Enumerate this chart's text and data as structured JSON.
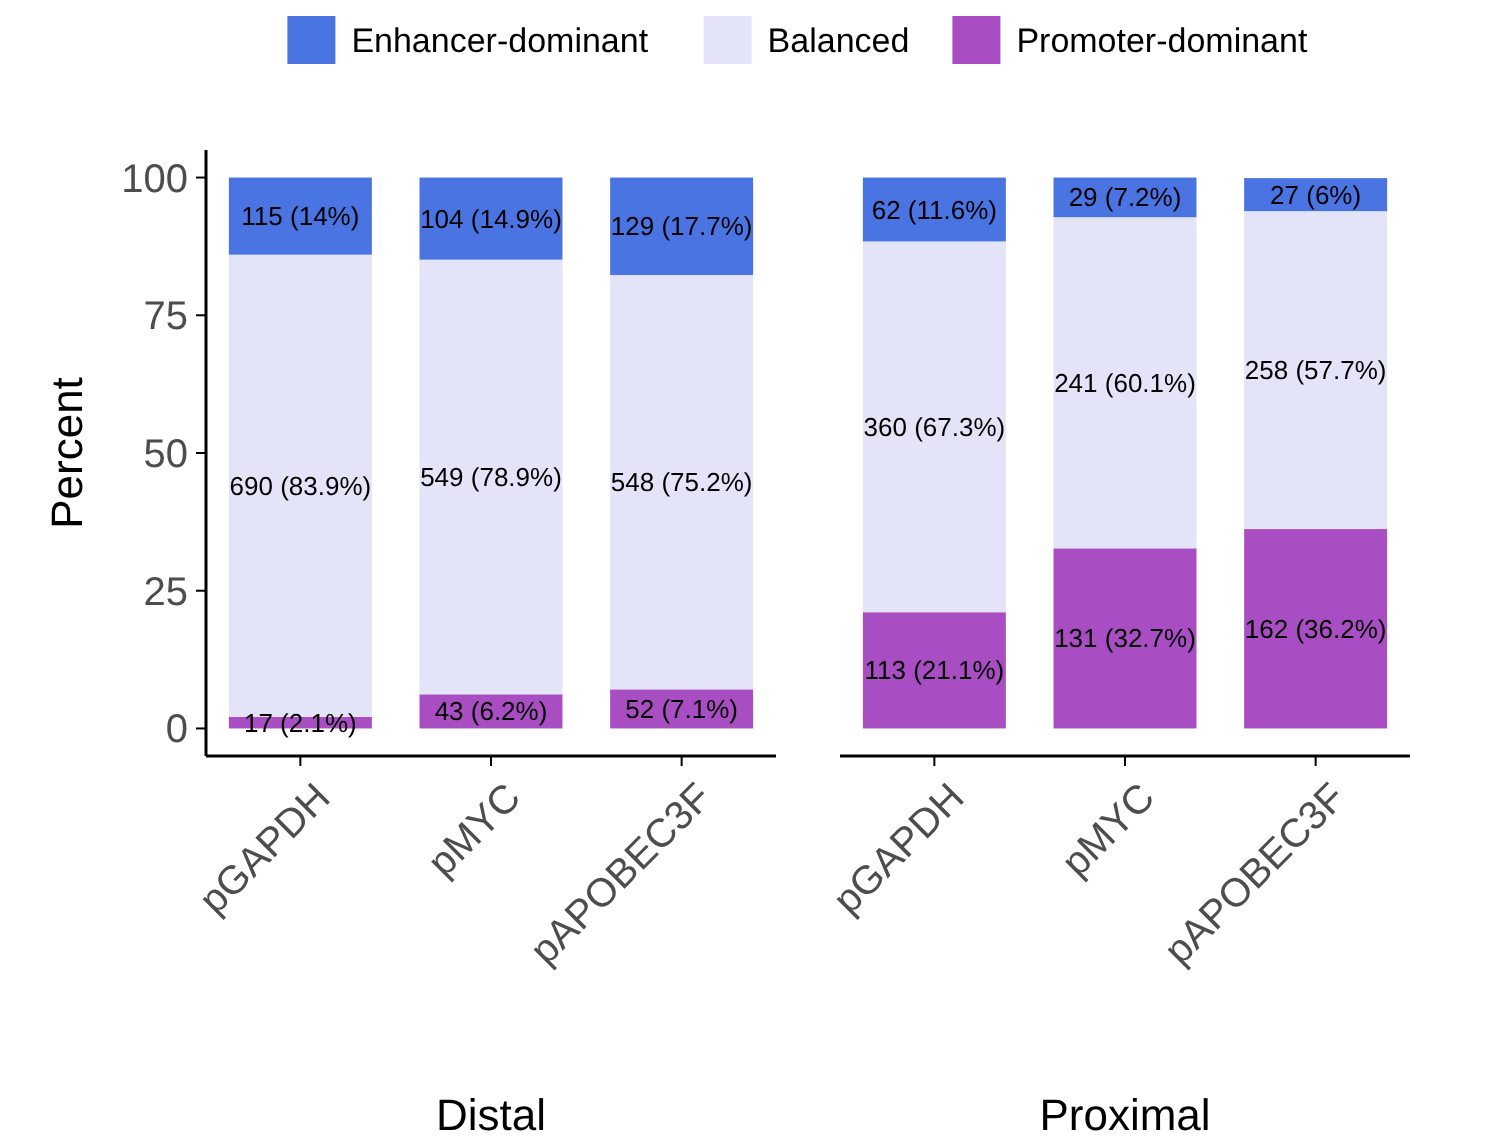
{
  "chart_data": [
    {
      "type": "bar",
      "stacked": true,
      "xlabel": "Distal",
      "ylabel": "Percent",
      "categories": [
        "pGAPDH",
        "pMYC",
        "pAPOBEC3F"
      ],
      "ylim": [
        -5,
        105
      ],
      "yticks": [
        0,
        25,
        50,
        75,
        100
      ],
      "grid": false,
      "legend": "top",
      "series": [
        {
          "name": "Promoter-dominant",
          "color": "#a94ec2",
          "values": [
            2.1,
            6.2,
            7.1
          ],
          "value_labels": [
            "17 (2.1%)",
            "43 (6.2%)",
            "52 (7.1%)"
          ]
        },
        {
          "name": "Balanced",
          "color": "#e4e4f8",
          "values": [
            83.9,
            78.9,
            75.2
          ],
          "value_labels": [
            "690 (83.9%)",
            "549 (78.9%)",
            "548 (75.2%)"
          ]
        },
        {
          "name": "Enhancer-dominant",
          "color": "#4a74e2",
          "values": [
            14,
            14.9,
            17.7
          ],
          "value_labels": [
            "115 (14%)",
            "104 (14.9%)",
            "129 (17.7%)"
          ]
        }
      ]
    },
    {
      "type": "bar",
      "stacked": true,
      "xlabel": "Proximal",
      "categories": [
        "pGAPDH",
        "pMYC",
        "pAPOBEC3F"
      ],
      "tick_labels": "x",
      "grid": false,
      "legend": false,
      "series": [
        {
          "color": "#a94ec2",
          "values": [
            21.1,
            32.7,
            36.2
          ],
          "value_labels": [
            "113 (21.1%)",
            "131 (32.7%)",
            "162 (36.2%)"
          ]
        },
        {
          "color": "#e4e4f8",
          "values": [
            67.3,
            60.1,
            57.7
          ],
          "value_labels": [
            "360 (67.3%)",
            "241 (60.1%)",
            "258 (57.7%)"
          ]
        },
        {
          "color": "#4a74e2",
          "values": [
            11.6,
            7.2,
            6
          ],
          "value_labels": [
            "62 (11.6%)",
            "29 (7.2%)",
            "27 (6%)"
          ]
        }
      ]
    }
  ]
}
